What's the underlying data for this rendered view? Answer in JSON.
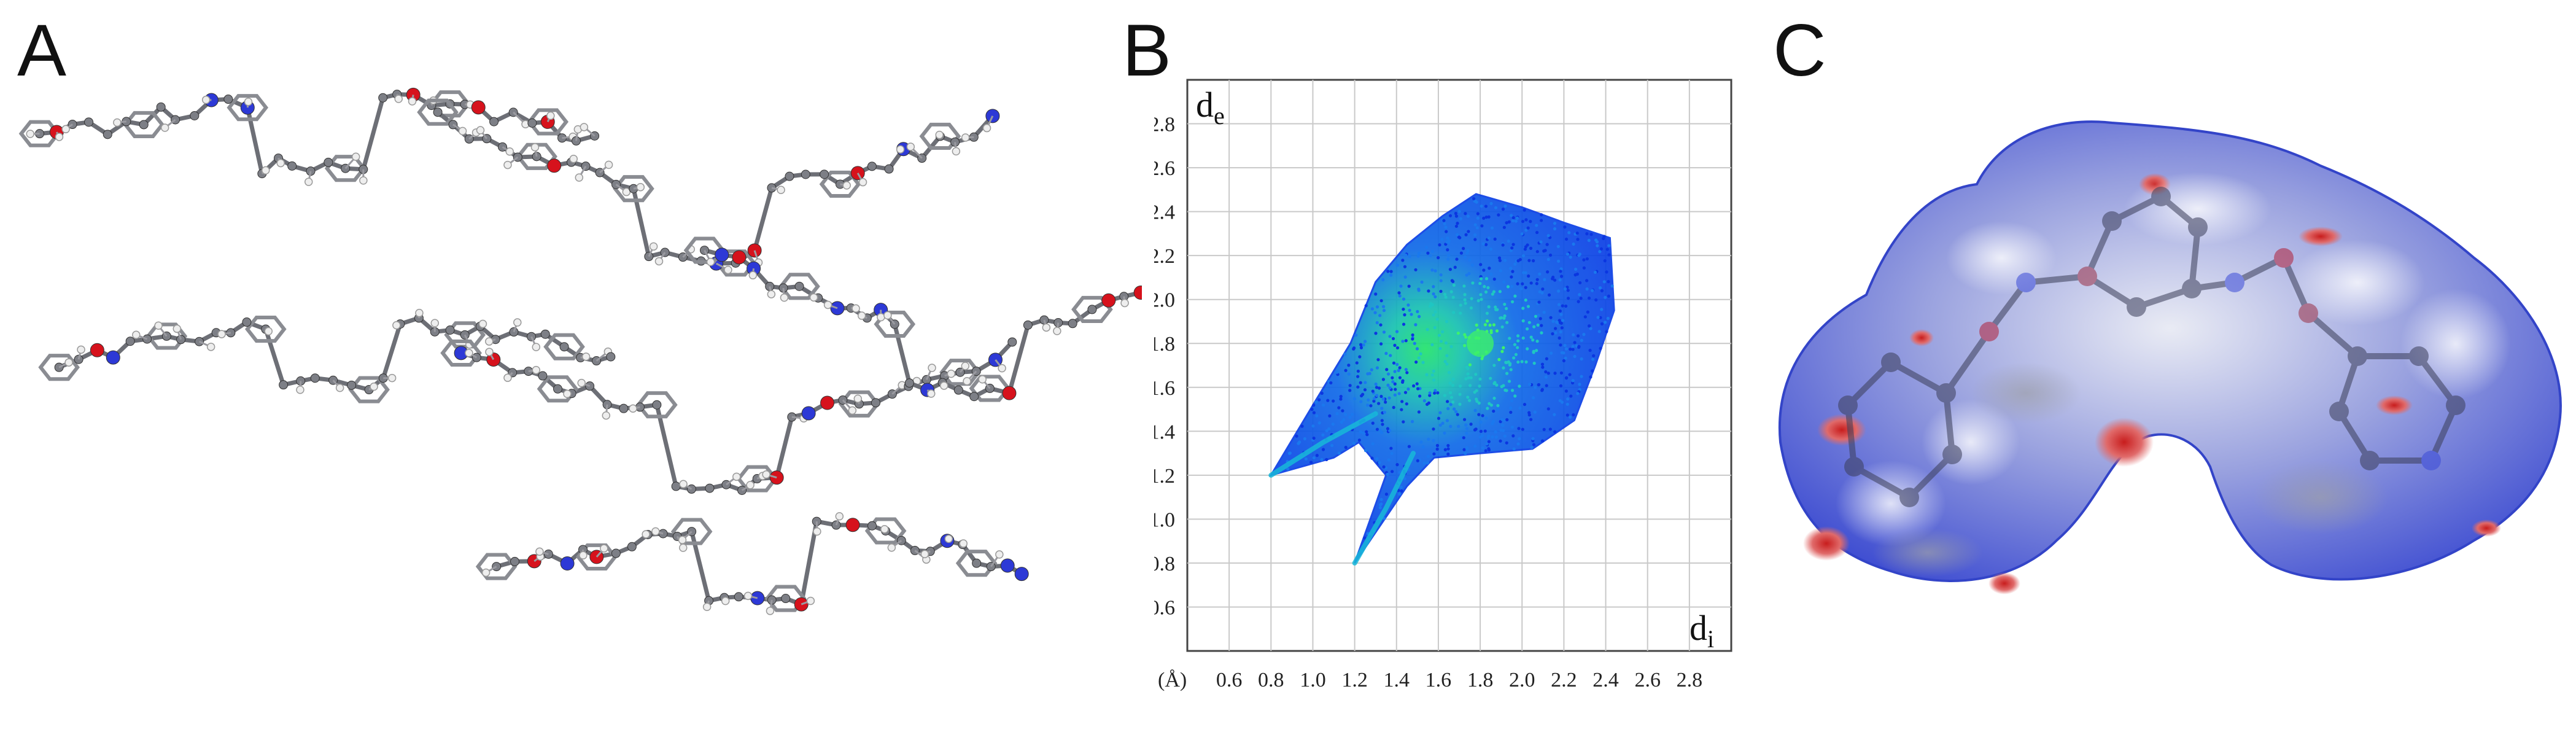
{
  "figure": {
    "panel_labels": {
      "a": "A",
      "b": "B",
      "c": "C"
    }
  },
  "panel_a": {
    "description_name": "crystal-packing",
    "molecule_count": 6,
    "colors": {
      "carbon": "#7d7f86",
      "oxygen": "#d6121c",
      "nitrogen": "#2d39d6",
      "hydrogen": "#eeeeee"
    }
  },
  "panel_b": {
    "axis_unit": "(Å)",
    "ylabel_main": "d",
    "ylabel_sub": "e",
    "xlabel_main": "d",
    "xlabel_sub": "i"
  },
  "panel_c": {
    "description_name": "hirshfeld-surface",
    "colors": {
      "surface_blue": "#2f3fcf",
      "surface_white": "#f2f2f6",
      "surface_red": "#d23030",
      "surface_grey": "#b9bbc4"
    }
  },
  "chart_data": {
    "type": "scatter",
    "title": "",
    "xlabel": "d_i",
    "ylabel": "d_e",
    "unit": "(Å)",
    "xlim": [
      0.4,
      3.0
    ],
    "ylim": [
      0.4,
      3.0
    ],
    "x_ticks": [
      "0.6",
      "0.8",
      "1.0",
      "1.2",
      "1.4",
      "1.6",
      "1.8",
      "2.0",
      "2.2",
      "2.4",
      "2.6",
      "2.8"
    ],
    "y_ticks": [
      "0.6",
      "0.8",
      "1.0",
      "1.2",
      "1.4",
      "1.6",
      "1.8",
      "2.0",
      "2.2",
      "2.4",
      "2.6",
      "2.8"
    ],
    "grid": true,
    "series": [
      {
        "name": "fingerprint envelope",
        "outline": [
          [
            0.8,
            1.2
          ],
          [
            1.02,
            1.55
          ],
          [
            1.18,
            1.8
          ],
          [
            1.3,
            2.08
          ],
          [
            1.45,
            2.25
          ],
          [
            1.62,
            2.38
          ],
          [
            1.78,
            2.48
          ],
          [
            2.0,
            2.42
          ],
          [
            2.2,
            2.35
          ],
          [
            2.42,
            2.28
          ],
          [
            2.44,
            1.95
          ],
          [
            2.35,
            1.7
          ],
          [
            2.25,
            1.45
          ],
          [
            2.05,
            1.32
          ],
          [
            1.8,
            1.3
          ],
          [
            1.58,
            1.28
          ],
          [
            1.45,
            1.15
          ],
          [
            1.2,
            0.8
          ],
          [
            1.35,
            1.2
          ],
          [
            1.28,
            1.28
          ],
          [
            1.22,
            1.35
          ],
          [
            1.1,
            1.28
          ]
        ]
      },
      {
        "name": "spike H···O lower",
        "points": [
          [
            1.2,
            0.8
          ],
          [
            1.35,
            1.05
          ],
          [
            1.48,
            1.3
          ]
        ]
      },
      {
        "name": "spike O···H upper",
        "points": [
          [
            0.8,
            1.2
          ],
          [
            1.05,
            1.35
          ],
          [
            1.3,
            1.48
          ]
        ]
      },
      {
        "name": "density maximum",
        "points": [
          [
            1.8,
            1.8
          ]
        ]
      }
    ]
  }
}
